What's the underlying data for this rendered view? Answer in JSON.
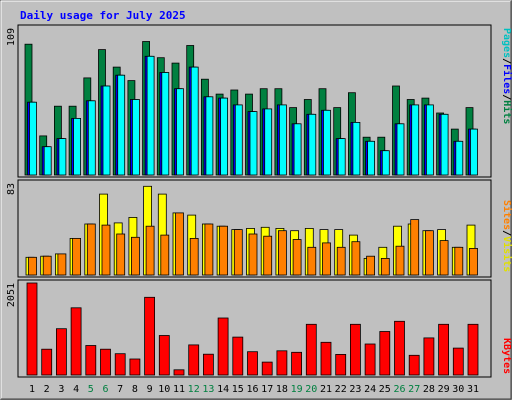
{
  "chart_data": [
    {
      "type": "bar",
      "panel": "hits-files-pages",
      "title": "Daily usage for July 2025",
      "ymax_label": "109",
      "ylim": [
        0,
        109
      ],
      "right_label": [
        "Pages",
        "/",
        "Files",
        "/",
        "Hits"
      ],
      "categories": [
        "1",
        "2",
        "3",
        "4",
        "5",
        "6",
        "7",
        "8",
        "9",
        "10",
        "11",
        "12",
        "13",
        "14",
        "15",
        "16",
        "17",
        "18",
        "19",
        "20",
        "21",
        "22",
        "23",
        "24",
        "25",
        "26",
        "27",
        "28",
        "29",
        "30",
        "31"
      ],
      "series": [
        {
          "name": "Hits",
          "values": [
            97,
            29,
            51,
            51,
            72,
            93,
            80,
            70,
            99,
            87,
            83,
            96,
            71,
            60,
            63,
            60,
            64,
            64,
            50,
            56,
            64,
            50,
            61,
            28,
            28,
            66,
            56,
            57,
            46,
            34,
            50
          ]
        },
        {
          "name": "Files",
          "values": [
            54,
            21,
            27,
            42,
            55,
            66,
            74,
            56,
            88,
            76,
            64,
            80,
            58,
            57,
            52,
            47,
            49,
            52,
            38,
            45,
            48,
            27,
            39,
            25,
            18,
            38,
            52,
            52,
            45,
            25,
            34
          ]
        },
        {
          "name": "Pages",
          "values": [
            54,
            21,
            27,
            42,
            55,
            66,
            74,
            56,
            88,
            76,
            64,
            80,
            58,
            57,
            52,
            47,
            49,
            52,
            38,
            45,
            48,
            27,
            39,
            25,
            18,
            38,
            52,
            52,
            45,
            25,
            34
          ]
        }
      ],
      "colors": {
        "Hits": "#008040",
        "Files": "#0000ff",
        "Pages": "#00ffff"
      }
    },
    {
      "type": "bar",
      "panel": "visits-sites",
      "ymax_label": "83",
      "ylim": [
        0,
        83
      ],
      "right_label": [
        "Sites",
        "/",
        "Visits"
      ],
      "series": [
        {
          "name": "Visits",
          "values": [
            16,
            17,
            19,
            33,
            46,
            73,
            47,
            52,
            80,
            73,
            56,
            54,
            46,
            44,
            41,
            42,
            43,
            42,
            40,
            42,
            41,
            41,
            36,
            15,
            25,
            44,
            46,
            40,
            41,
            25,
            45
          ]
        },
        {
          "name": "Sites",
          "values": [
            16,
            17,
            19,
            33,
            46,
            45,
            37,
            34,
            44,
            36,
            56,
            33,
            46,
            44,
            41,
            37,
            35,
            40,
            32,
            25,
            29,
            25,
            30,
            17,
            15,
            26,
            50,
            40,
            31,
            25,
            24
          ]
        }
      ],
      "colors": {
        "Visits": "#ffff00",
        "Sites": "#ff8000"
      }
    },
    {
      "type": "bar",
      "panel": "kbytes",
      "ymax_label": "2051",
      "ylim": [
        0,
        2051
      ],
      "right_label": [
        "KBytes"
      ],
      "series": [
        {
          "name": "KBytes",
          "values": [
            2051,
            575,
            1033,
            1498,
            657,
            575,
            474,
            356,
            1732,
            880,
            117,
            672,
            463,
            1270,
            846,
            520,
            287,
            540,
            505,
            1130,
            730,
            460,
            1130,
            690,
            970,
            1198,
            440,
            826,
            1130,
            600,
            1130
          ]
        }
      ],
      "colors": {
        "KBytes": "#ff0000"
      }
    }
  ],
  "weekend_days": [
    "5",
    "6",
    "12",
    "13",
    "19",
    "20",
    "26",
    "27"
  ],
  "colors": {
    "weekday_label": "#000000",
    "weekend_label": "#008040",
    "title": "#0000ff",
    "panel_bg": "#c0c0c0"
  }
}
